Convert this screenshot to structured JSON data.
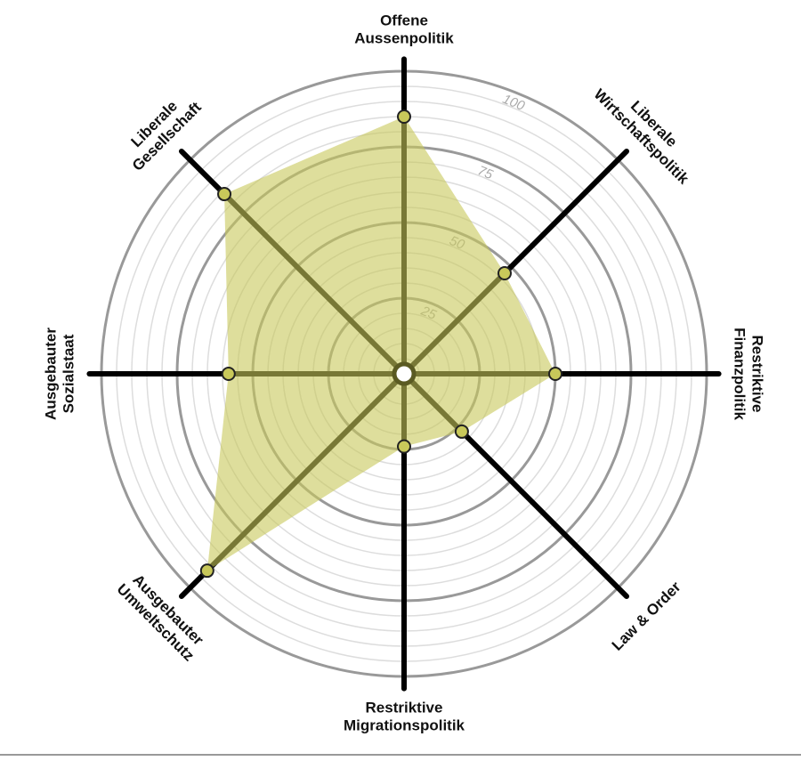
{
  "chart_data": {
    "type": "radar",
    "categories": [
      [
        "Offene",
        "Aussenpolitik"
      ],
      [
        "Liberale",
        "Wirtschaftspolitik"
      ],
      [
        "Restriktive",
        "Finanzpolitik"
      ],
      [
        "Law & Order"
      ],
      [
        "Restriktive",
        "Migrationspolitik"
      ],
      [
        "Ausgebauter",
        "Umweltschutz"
      ],
      [
        "Ausgebauter",
        "Sozialstaat"
      ],
      [
        "Liberale",
        "Gesellschaft"
      ]
    ],
    "values": [
      85,
      47,
      50,
      27,
      24,
      92,
      58,
      84
    ],
    "color": "#c8c85a",
    "rlim": [
      0,
      100
    ],
    "rticks": [
      25,
      50,
      75,
      100
    ],
    "minor_rticks": [
      5,
      10,
      15,
      20,
      30,
      35,
      40,
      45,
      55,
      60,
      65,
      70,
      80,
      85,
      90,
      95
    ]
  }
}
